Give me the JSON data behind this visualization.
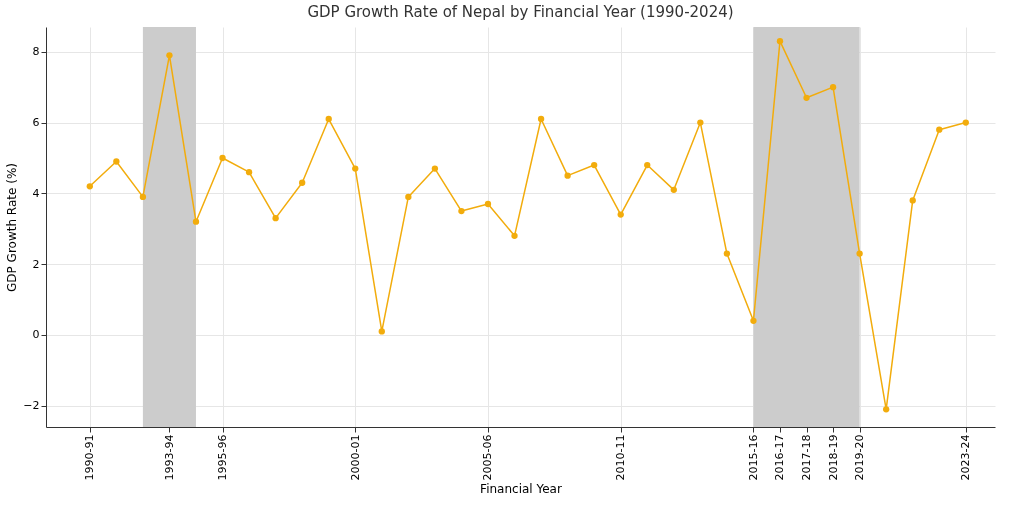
{
  "chart_data": {
    "type": "line",
    "title": "GDP Growth Rate of Nepal by Financial Year (1990-2024)",
    "xlabel": "Financial Year",
    "ylabel": "GDP Growth Rate (%)",
    "categories": [
      "1990-91",
      null,
      null,
      "1993-94",
      null,
      "1995-96",
      null,
      null,
      null,
      null,
      "2000-01",
      null,
      null,
      null,
      null,
      "2005-06",
      null,
      null,
      null,
      null,
      "2010-11",
      null,
      null,
      null,
      null,
      "2015-16",
      "2016-17",
      "2017-18",
      "2018-19",
      "2019-20",
      null,
      null,
      null,
      "2023-24"
    ],
    "series": [
      {
        "color": "#f2ac0c",
        "values": [
          4.2,
          4.9,
          3.9,
          7.9,
          3.2,
          5.0,
          4.6,
          3.3,
          4.3,
          6.1,
          4.7,
          0.1,
          3.9,
          4.7,
          3.5,
          3.7,
          2.8,
          6.1,
          4.5,
          4.8,
          3.4,
          4.8,
          4.1,
          6.0,
          2.3,
          0.4,
          8.3,
          6.7,
          7.0,
          2.3,
          -2.1,
          3.8,
          5.8,
          6.0
        ]
      }
    ],
    "ylim": [
      -2.6,
      8.7
    ],
    "yticks": [
      {
        "value": -2,
        "label": "−2"
      },
      0,
      2,
      4,
      6,
      8
    ],
    "bands": [
      {
        "axis": "x",
        "from": "2015-16",
        "to": "2019-20",
        "color": "#cccccc"
      }
    ],
    "grid": true,
    "marker": "circle",
    "line_style": "solid"
  }
}
